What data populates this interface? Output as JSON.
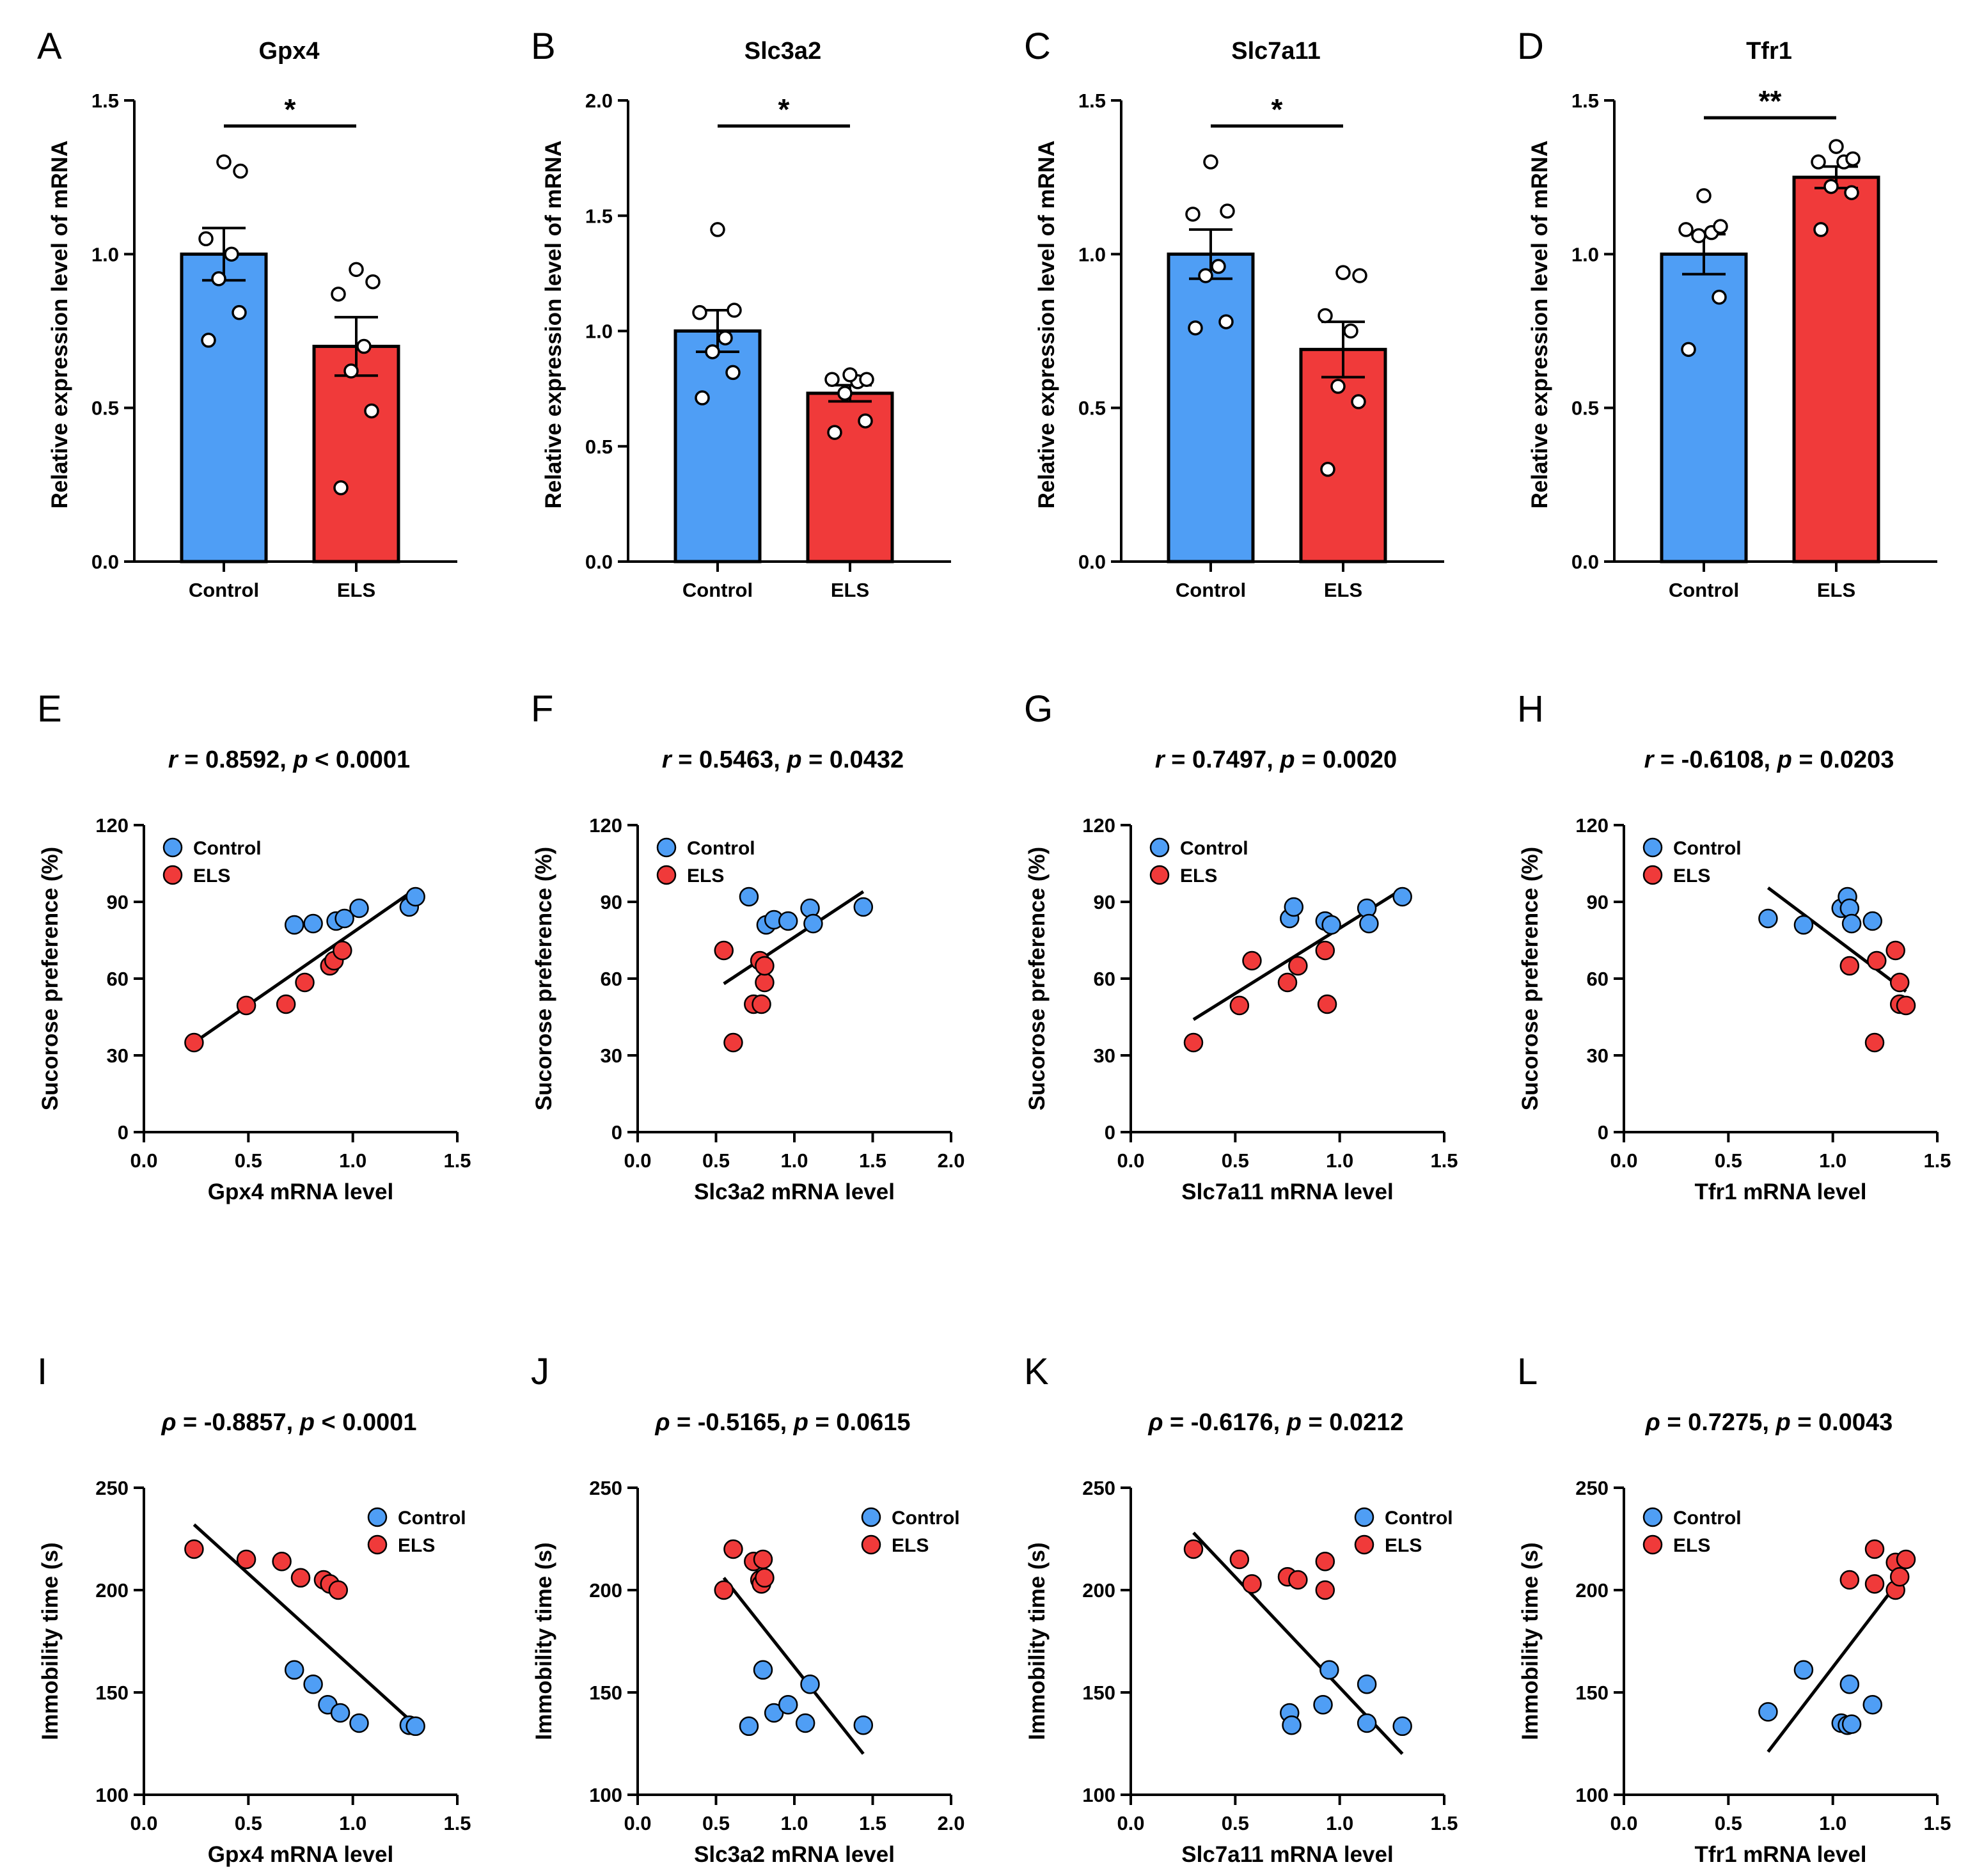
{
  "colors": {
    "control": "#4f9ef5",
    "els": "#f03a3a",
    "dot_bar": "#ffffff",
    "ink": "#000000"
  },
  "bar_panels": [
    {
      "letter": "A",
      "title": "Gpx4",
      "ylabel": "Relative expression level of mRNA",
      "yticks": [
        "0.0",
        "0.5",
        "1.0",
        "1.5"
      ],
      "categories": [
        "Control",
        "ELS"
      ],
      "significance": "*"
    },
    {
      "letter": "B",
      "title": "Slc3a2",
      "ylabel": "Relative expression level of mRNA",
      "yticks": [
        "0.0",
        "0.5",
        "1.0",
        "1.5",
        "2.0"
      ],
      "categories": [
        "Control",
        "ELS"
      ],
      "significance": "*"
    },
    {
      "letter": "C",
      "title": "Slc7a11",
      "ylabel": "Relative expression level of mRNA",
      "yticks": [
        "0.0",
        "0.5",
        "1.0",
        "1.5"
      ],
      "categories": [
        "Control",
        "ELS"
      ],
      "significance": "*"
    },
    {
      "letter": "D",
      "title": "Tfr1",
      "ylabel": "Relative expression level of mRNA",
      "yticks": [
        "0.0",
        "0.5",
        "1.0",
        "1.5"
      ],
      "categories": [
        "Control",
        "ELS"
      ],
      "significance": "**"
    }
  ],
  "scatter_panels": [
    {
      "letter": "E",
      "stat_symbol": "r",
      "stat_value": " = 0.8592, ",
      "p_symbol": "p",
      "p_value": " < 0.0001",
      "xlabel": "Gpx4 mRNA level",
      "ylabel": "Sucorose preference (%)",
      "xticks": [
        "0.0",
        "0.5",
        "1.0",
        "1.5"
      ],
      "yticks": [
        "0",
        "30",
        "60",
        "90",
        "120"
      ],
      "legend": [
        "Control",
        "ELS"
      ]
    },
    {
      "letter": "F",
      "stat_symbol": "r",
      "stat_value": " = 0.5463, ",
      "p_symbol": "p",
      "p_value": " = 0.0432",
      "xlabel": "Slc3a2 mRNA level",
      "ylabel": "Sucorose preference (%)",
      "xticks": [
        "0.0",
        "0.5",
        "1.0",
        "1.5",
        "2.0"
      ],
      "yticks": [
        "0",
        "30",
        "60",
        "90",
        "120"
      ],
      "legend": [
        "Control",
        "ELS"
      ]
    },
    {
      "letter": "G",
      "stat_symbol": "r",
      "stat_value": " = 0.7497, ",
      "p_symbol": "p",
      "p_value": " = 0.0020",
      "xlabel": "Slc7a11 mRNA level",
      "ylabel": "Sucorose preference (%)",
      "xticks": [
        "0.0",
        "0.5",
        "1.0",
        "1.5"
      ],
      "yticks": [
        "0",
        "30",
        "60",
        "90",
        "120"
      ],
      "legend": [
        "Control",
        "ELS"
      ]
    },
    {
      "letter": "H",
      "stat_symbol": "r",
      "stat_value": " = -0.6108, ",
      "p_symbol": "p",
      "p_value": " = 0.0203",
      "xlabel": "Tfr1 mRNA level",
      "ylabel": "Sucorose preference (%)",
      "xticks": [
        "0.0",
        "0.5",
        "1.0",
        "1.5"
      ],
      "yticks": [
        "0",
        "30",
        "60",
        "90",
        "120"
      ],
      "legend": [
        "Control",
        "ELS"
      ]
    },
    {
      "letter": "I",
      "stat_symbol": "ρ",
      "stat_value": " = -0.8857, ",
      "p_symbol": "p",
      "p_value": " < 0.0001",
      "xlabel": "Gpx4 mRNA level",
      "ylabel": "Immobility time (s)",
      "xticks": [
        "0.0",
        "0.5",
        "1.0",
        "1.5"
      ],
      "yticks": [
        "100",
        "150",
        "200",
        "250"
      ],
      "legend": [
        "Control",
        "ELS"
      ]
    },
    {
      "letter": "J",
      "stat_symbol": "ρ",
      "stat_value": " = -0.5165, ",
      "p_symbol": "p",
      "p_value": " = 0.0615",
      "xlabel": "Slc3a2 mRNA level",
      "ylabel": "Immobility time (s)",
      "xticks": [
        "0.0",
        "0.5",
        "1.0",
        "1.5",
        "2.0"
      ],
      "yticks": [
        "100",
        "150",
        "200",
        "250"
      ],
      "legend": [
        "Control",
        "ELS"
      ]
    },
    {
      "letter": "K",
      "stat_symbol": "ρ",
      "stat_value": " = -0.6176, ",
      "p_symbol": "p",
      "p_value": " = 0.0212",
      "xlabel": "Slc7a11 mRNA level",
      "ylabel": "Immobility time (s)",
      "xticks": [
        "0.0",
        "0.5",
        "1.0",
        "1.5"
      ],
      "yticks": [
        "100",
        "150",
        "200",
        "250"
      ],
      "legend": [
        "Control",
        "ELS"
      ]
    },
    {
      "letter": "L",
      "stat_symbol": "ρ",
      "stat_value": " = 0.7275, ",
      "p_symbol": "p",
      "p_value": " = 0.0043",
      "xlabel": "Tfr1 mRNA level",
      "ylabel": "Immobility time (s)",
      "xticks": [
        "0.0",
        "0.5",
        "1.0",
        "1.5"
      ],
      "yticks": [
        "100",
        "150",
        "200",
        "250"
      ],
      "legend": [
        "Control",
        "ELS"
      ]
    }
  ],
  "chart_data": [
    {
      "panel": "A",
      "type": "bar",
      "title": "Gpx4",
      "ylabel": "Relative expression level of mRNA",
      "ylim": [
        0,
        1.5
      ],
      "categories": [
        "Control",
        "ELS"
      ],
      "values": [
        1.0,
        0.7
      ],
      "sem": [
        0.085,
        0.095
      ],
      "significance": "*",
      "points": [
        [
          0.72,
          0.81,
          0.92,
          1.0,
          1.05,
          1.27,
          1.3
        ],
        [
          0.24,
          0.49,
          0.62,
          0.7,
          0.87,
          0.91,
          0.95
        ]
      ]
    },
    {
      "panel": "B",
      "type": "bar",
      "title": "Slc3a2",
      "ylabel": "Relative expression level of mRNA",
      "ylim": [
        0,
        2.0
      ],
      "categories": [
        "Control",
        "ELS"
      ],
      "values": [
        1.0,
        0.73
      ],
      "sem": [
        0.09,
        0.035
      ],
      "significance": "*",
      "points": [
        [
          0.71,
          0.82,
          0.91,
          0.97,
          1.08,
          1.09,
          1.44
        ],
        [
          0.56,
          0.61,
          0.73,
          0.78,
          0.79,
          0.79,
          0.81
        ]
      ]
    },
    {
      "panel": "C",
      "type": "bar",
      "title": "Slc7a11",
      "ylabel": "Relative expression level of mRNA",
      "ylim": [
        0,
        1.5
      ],
      "categories": [
        "Control",
        "ELS"
      ],
      "values": [
        1.0,
        0.69
      ],
      "sem": [
        0.08,
        0.09
      ],
      "significance": "*",
      "points": [
        [
          0.76,
          0.78,
          0.93,
          0.96,
          1.13,
          1.14,
          1.3
        ],
        [
          0.3,
          0.52,
          0.57,
          0.75,
          0.8,
          0.93,
          0.94
        ]
      ]
    },
    {
      "panel": "D",
      "type": "bar",
      "title": "Tfr1",
      "ylabel": "Relative expression level of mRNA",
      "ylim": [
        0,
        1.5
      ],
      "categories": [
        "Control",
        "ELS"
      ],
      "values": [
        1.0,
        1.25
      ],
      "sem": [
        0.065,
        0.035
      ],
      "significance": "**",
      "points": [
        [
          0.69,
          0.86,
          1.06,
          1.07,
          1.08,
          1.09,
          1.19
        ],
        [
          1.08,
          1.2,
          1.22,
          1.3,
          1.3,
          1.31,
          1.35
        ]
      ]
    },
    {
      "panel": "E",
      "type": "scatter",
      "xlabel": "Gpx4 mRNA level",
      "ylabel": "Sucorose preference (%)",
      "xlim": [
        0,
        1.5
      ],
      "ylim": [
        0,
        120
      ],
      "r": 0.8592,
      "p": "< 0.0001",
      "series": [
        {
          "name": "Control",
          "points": [
            [
              0.72,
              81
            ],
            [
              0.81,
              81.5
            ],
            [
              0.92,
              82.5
            ],
            [
              0.96,
              83.5
            ],
            [
              1.03,
              87.5
            ],
            [
              1.27,
              88
            ],
            [
              1.3,
              92
            ]
          ]
        },
        {
          "name": "ELS",
          "points": [
            [
              0.24,
              35
            ],
            [
              0.49,
              49.5
            ],
            [
              0.68,
              50
            ],
            [
              0.77,
              58.5
            ],
            [
              0.89,
              65
            ],
            [
              0.91,
              67
            ],
            [
              0.95,
              71
            ]
          ]
        }
      ],
      "fit": [
        [
          0.24,
          35
        ],
        [
          1.3,
          95
        ]
      ]
    },
    {
      "panel": "F",
      "type": "scatter",
      "xlabel": "Slc3a2 mRNA level",
      "ylabel": "Sucorose preference (%)",
      "xlim": [
        0,
        2.0
      ],
      "ylim": [
        0,
        120
      ],
      "r": 0.5463,
      "p": "= 0.0432",
      "series": [
        {
          "name": "Control",
          "points": [
            [
              0.71,
              92
            ],
            [
              0.82,
              81
            ],
            [
              0.87,
              83
            ],
            [
              0.96,
              82.5
            ],
            [
              1.1,
              87.5
            ],
            [
              1.12,
              81.5
            ],
            [
              1.44,
              88
            ]
          ]
        },
        {
          "name": "ELS",
          "points": [
            [
              0.55,
              71
            ],
            [
              0.61,
              35
            ],
            [
              0.74,
              50
            ],
            [
              0.78,
              67
            ],
            [
              0.79,
              50
            ],
            [
              0.81,
              58.5
            ],
            [
              0.81,
              65
            ]
          ]
        }
      ],
      "fit": [
        [
          0.55,
          58
        ],
        [
          1.44,
          94
        ]
      ]
    },
    {
      "panel": "G",
      "type": "scatter",
      "xlabel": "Slc7a11 mRNA level",
      "ylabel": "Sucorose preference (%)",
      "xlim": [
        0,
        1.5
      ],
      "ylim": [
        0,
        120
      ],
      "r": 0.7497,
      "p": "= 0.0020",
      "series": [
        {
          "name": "Control",
          "points": [
            [
              0.76,
              83.5
            ],
            [
              0.78,
              88
            ],
            [
              0.93,
              82.5
            ],
            [
              0.96,
              81
            ],
            [
              1.13,
              87.5
            ],
            [
              1.14,
              81.5
            ],
            [
              1.3,
              92
            ]
          ]
        },
        {
          "name": "ELS",
          "points": [
            [
              0.3,
              35
            ],
            [
              0.52,
              49.5
            ],
            [
              0.58,
              67
            ],
            [
              0.75,
              58.5
            ],
            [
              0.8,
              65
            ],
            [
              0.93,
              71
            ],
            [
              0.94,
              50
            ]
          ]
        }
      ],
      "fit": [
        [
          0.3,
          44
        ],
        [
          1.3,
          95
        ]
      ]
    },
    {
      "panel": "H",
      "type": "scatter",
      "xlabel": "Tfr1 mRNA level",
      "ylabel": "Sucorose preference (%)",
      "xlim": [
        0,
        1.5
      ],
      "ylim": [
        0,
        120
      ],
      "r": -0.6108,
      "p": "= 0.0203",
      "series": [
        {
          "name": "Control",
          "points": [
            [
              0.69,
              83.5
            ],
            [
              0.86,
              81
            ],
            [
              1.04,
              87.5
            ],
            [
              1.07,
              92
            ],
            [
              1.08,
              87.5
            ],
            [
              1.09,
              81.5
            ],
            [
              1.19,
              82.5
            ]
          ]
        },
        {
          "name": "ELS",
          "points": [
            [
              1.08,
              65
            ],
            [
              1.2,
              35
            ],
            [
              1.21,
              67
            ],
            [
              1.3,
              71
            ],
            [
              1.32,
              58.5
            ],
            [
              1.32,
              50
            ],
            [
              1.35,
              49.5
            ]
          ]
        }
      ],
      "fit": [
        [
          0.69,
          95.5
        ],
        [
          1.35,
          55
        ]
      ]
    },
    {
      "panel": "I",
      "type": "scatter",
      "xlabel": "Gpx4 mRNA level",
      "ylabel": "Immobility time (s)",
      "xlim": [
        0,
        1.5
      ],
      "ylim": [
        100,
        250
      ],
      "rho": -0.8857,
      "p": "< 0.0001",
      "series": [
        {
          "name": "Control",
          "points": [
            [
              0.72,
              161
            ],
            [
              0.81,
              154
            ],
            [
              0.88,
              144
            ],
            [
              0.94,
              140
            ],
            [
              1.03,
              135
            ],
            [
              1.27,
              134
            ],
            [
              1.3,
              133.5
            ]
          ]
        },
        {
          "name": "ELS",
          "points": [
            [
              0.24,
              220
            ],
            [
              0.49,
              215
            ],
            [
              0.66,
              214
            ],
            [
              0.75,
              206
            ],
            [
              0.86,
              205
            ],
            [
              0.89,
              203
            ],
            [
              0.93,
              200
            ]
          ]
        }
      ],
      "fit": [
        [
          0.24,
          232
        ],
        [
          1.3,
          134
        ]
      ]
    },
    {
      "panel": "J",
      "type": "scatter",
      "xlabel": "Slc3a2 mRNA level",
      "ylabel": "Immobility time (s)",
      "xlim": [
        0,
        2.0
      ],
      "ylim": [
        100,
        250
      ],
      "rho": -0.5165,
      "p": "= 0.0615",
      "series": [
        {
          "name": "Control",
          "points": [
            [
              0.71,
              133.5
            ],
            [
              0.8,
              161
            ],
            [
              0.87,
              140
            ],
            [
              0.96,
              144
            ],
            [
              1.07,
              135
            ],
            [
              1.1,
              154
            ],
            [
              1.44,
              134
            ]
          ]
        },
        {
          "name": "ELS",
          "points": [
            [
              0.55,
              200
            ],
            [
              0.61,
              220
            ],
            [
              0.74,
              214
            ],
            [
              0.78,
              205
            ],
            [
              0.79,
              203
            ],
            [
              0.8,
              215
            ],
            [
              0.81,
              206
            ]
          ]
        }
      ],
      "fit": [
        [
          0.55,
          206
        ],
        [
          1.44,
          120
        ]
      ]
    },
    {
      "panel": "K",
      "type": "scatter",
      "xlabel": "Slc7a11 mRNA level",
      "ylabel": "Immobility time (s)",
      "xlim": [
        0,
        1.5
      ],
      "ylim": [
        100,
        250
      ],
      "rho": -0.6176,
      "p": "= 0.0212",
      "series": [
        {
          "name": "Control",
          "points": [
            [
              0.76,
              140
            ],
            [
              0.77,
              134
            ],
            [
              0.92,
              144
            ],
            [
              0.95,
              161
            ],
            [
              1.13,
              135
            ],
            [
              1.13,
              154
            ],
            [
              1.3,
              133.5
            ]
          ]
        },
        {
          "name": "ELS",
          "points": [
            [
              0.3,
              220
            ],
            [
              0.52,
              215
            ],
            [
              0.58,
              203
            ],
            [
              0.75,
              206.5
            ],
            [
              0.8,
              205
            ],
            [
              0.93,
              214
            ],
            [
              0.93,
              200
            ]
          ]
        }
      ],
      "fit": [
        [
          0.3,
          228
        ],
        [
          1.3,
          120
        ]
      ]
    },
    {
      "panel": "L",
      "type": "scatter",
      "xlabel": "Tfr1 mRNA level",
      "ylabel": "Immobility time (s)",
      "xlim": [
        0,
        1.5
      ],
      "ylim": [
        100,
        250
      ],
      "rho": 0.7275,
      "p": "= 0.0043",
      "series": [
        {
          "name": "Control",
          "points": [
            [
              0.69,
              140.5
            ],
            [
              0.86,
              161
            ],
            [
              1.04,
              135
            ],
            [
              1.07,
              134
            ],
            [
              1.08,
              154
            ],
            [
              1.19,
              144
            ],
            [
              1.09,
              134.5
            ]
          ]
        },
        {
          "name": "ELS",
          "points": [
            [
              1.08,
              205
            ],
            [
              1.2,
              220
            ],
            [
              1.2,
              203
            ],
            [
              1.3,
              213.5
            ],
            [
              1.3,
              200
            ],
            [
              1.32,
              206.5
            ],
            [
              1.35,
              215
            ]
          ]
        }
      ],
      "fit": [
        [
          0.69,
          121
        ],
        [
          1.35,
          209
        ]
      ]
    }
  ]
}
